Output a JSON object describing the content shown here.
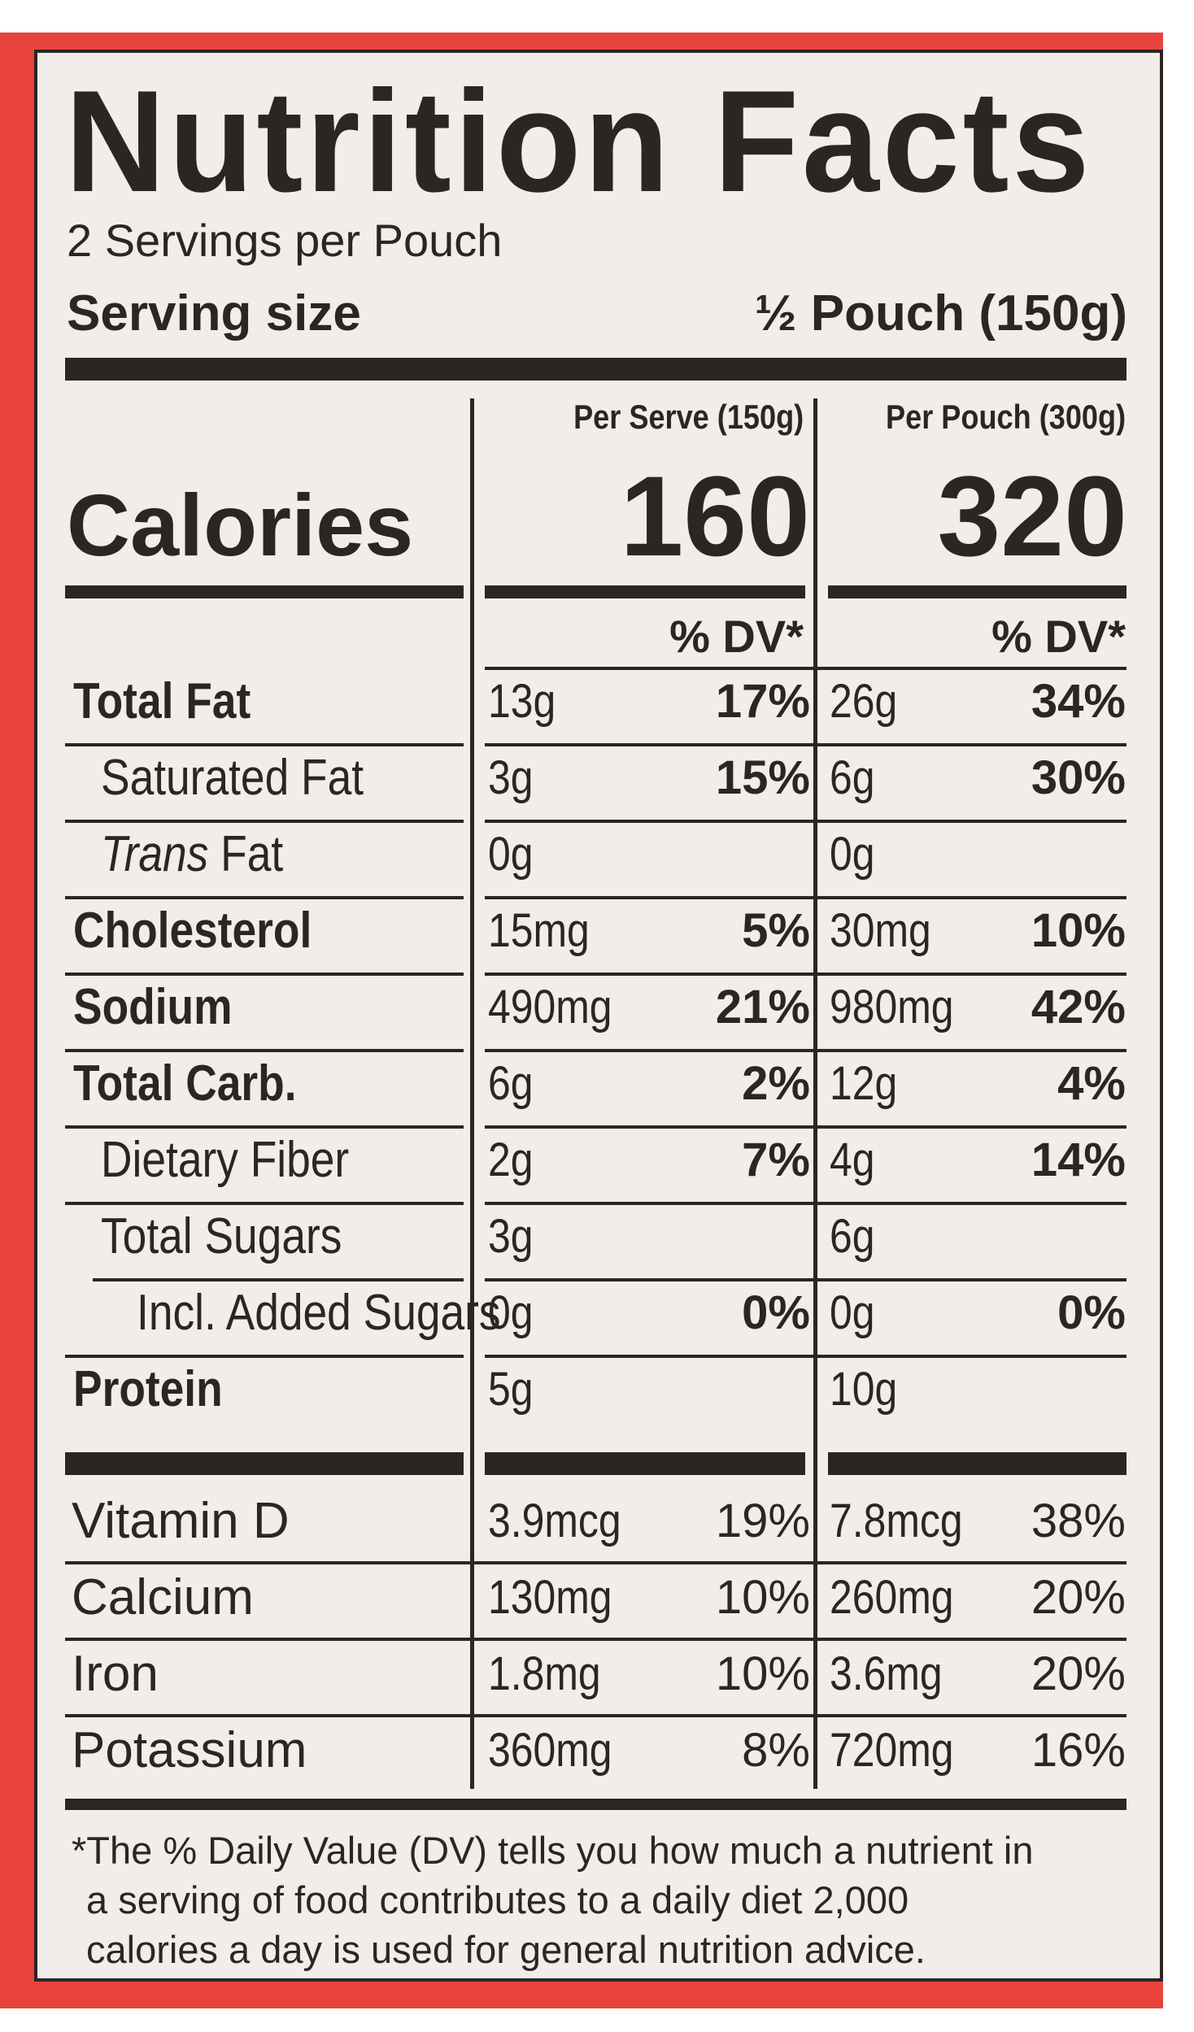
{
  "title": "Nutrition Facts",
  "servings_per_container": "2 Servings per Pouch",
  "serving_size_label": "Serving size",
  "serving_size_value": "½ Pouch (150g)",
  "columns": {
    "per_serve_header": "Per Serve (150g)",
    "per_pouch_header": "Per Pouch (300g)",
    "dv_header": "% DV*"
  },
  "calories": {
    "label": "Calories",
    "per_serve": "160",
    "per_pouch": "320"
  },
  "nutrients": [
    {
      "name": "Total Fat",
      "italic_prefix": "",
      "serve_amount": "13g",
      "serve_dv": "17%",
      "pouch_amount": "26g",
      "pouch_dv": "34%"
    },
    {
      "name": "Saturated Fat",
      "italic_prefix": "",
      "serve_amount": "3g",
      "serve_dv": "15%",
      "pouch_amount": "6g",
      "pouch_dv": "30%"
    },
    {
      "name": " Fat",
      "italic_prefix": "Trans",
      "serve_amount": "0g",
      "serve_dv": "",
      "pouch_amount": "0g",
      "pouch_dv": ""
    },
    {
      "name": "Cholesterol",
      "italic_prefix": "",
      "serve_amount": "15mg",
      "serve_dv": "5%",
      "pouch_amount": "30mg",
      "pouch_dv": "10%"
    },
    {
      "name": "Sodium",
      "italic_prefix": "",
      "serve_amount": "490mg",
      "serve_dv": "21%",
      "pouch_amount": "980mg",
      "pouch_dv": "42%"
    },
    {
      "name": "Total Carb.",
      "italic_prefix": "",
      "serve_amount": "6g",
      "serve_dv": "2%",
      "pouch_amount": "12g",
      "pouch_dv": "4%"
    },
    {
      "name": "Dietary Fiber",
      "italic_prefix": "",
      "serve_amount": "2g",
      "serve_dv": "7%",
      "pouch_amount": "4g",
      "pouch_dv": "14%"
    },
    {
      "name": "Total Sugars",
      "italic_prefix": "",
      "serve_amount": "3g",
      "serve_dv": "",
      "pouch_amount": "6g",
      "pouch_dv": ""
    },
    {
      "name": "Incl. Added Sugars",
      "italic_prefix": "",
      "serve_amount": "0g",
      "serve_dv": "0%",
      "pouch_amount": "0g",
      "pouch_dv": "0%"
    },
    {
      "name": "Protein",
      "italic_prefix": "",
      "serve_amount": "5g",
      "serve_dv": "",
      "pouch_amount": "10g",
      "pouch_dv": ""
    }
  ],
  "vitamins": [
    {
      "name": "Vitamin D",
      "serve_amount": "3.9mcg",
      "serve_dv": "19%",
      "pouch_amount": "7.8mcg",
      "pouch_dv": "38%"
    },
    {
      "name": "Calcium",
      "serve_amount": "130mg",
      "serve_dv": "10%",
      "pouch_amount": "260mg",
      "pouch_dv": "20%"
    },
    {
      "name": "Iron",
      "serve_amount": "1.8mg",
      "serve_dv": "10%",
      "pouch_amount": "3.6mg",
      "pouch_dv": "20%"
    },
    {
      "name": "Potassium",
      "serve_amount": "360mg",
      "serve_dv": "8%",
      "pouch_amount": "720mg",
      "pouch_dv": "16%"
    }
  ],
  "footnote": [
    "*The % Daily Value (DV) tells you how much a nutrient in",
    "a serving of food contributes to a daily diet 2,000",
    "calories a day is used for general nutrition advice."
  ],
  "colors": {
    "border_red": "#e8443d",
    "panel_bg": "#f0edeb",
    "ink": "#2b2624"
  }
}
